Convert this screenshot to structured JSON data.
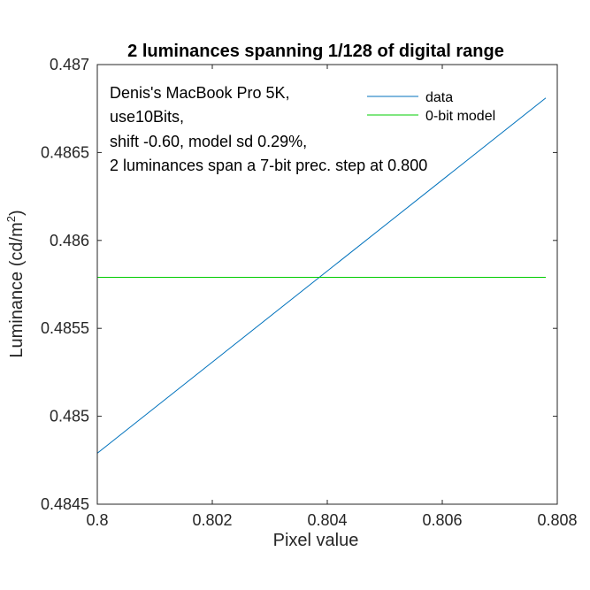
{
  "chart_data": {
    "type": "line",
    "title": "2 luminances spanning 1/128 of digital range",
    "xlabel": "Pixel value",
    "ylabel_main": "Luminance (cd/m",
    "ylabel_sup": "2",
    "ylabel_close": ")",
    "xlim": [
      0.8,
      0.808
    ],
    "ylim": [
      0.4845,
      0.487
    ],
    "xticks": [
      0.8,
      0.802,
      0.804,
      0.806,
      0.808
    ],
    "xtick_labels": [
      "0.8",
      "0.802",
      "0.804",
      "0.806",
      "0.808"
    ],
    "yticks": [
      0.4845,
      0.485,
      0.4855,
      0.486,
      0.4865,
      0.487
    ],
    "ytick_labels": [
      "0.4845",
      "0.485",
      "0.4855",
      "0.486",
      "0.4865",
      "0.487"
    ],
    "grid": false,
    "legend_position": "top-right",
    "annotation": [
      "Denis's MacBook Pro 5K,",
      "use10Bits,",
      "shift -0.60, model sd 0.29%,",
      "2 luminances span a 7-bit prec. step at 0.800"
    ],
    "series": [
      {
        "name": "data",
        "color": "#0072bd",
        "x": [
          0.8,
          0.8078
        ],
        "y": [
          0.48479,
          0.48681
        ]
      },
      {
        "name": "0-bit model",
        "color": "#00cc00",
        "x": [
          0.8,
          0.8078
        ],
        "y": [
          0.48579,
          0.48579
        ]
      }
    ]
  }
}
